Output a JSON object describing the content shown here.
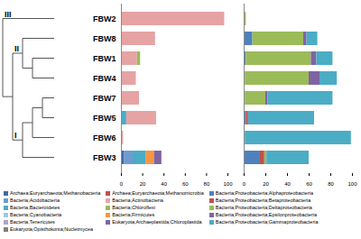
{
  "chart_data": [
    {
      "type": "bar",
      "orientation": "horizontal",
      "stacked": true,
      "grid": false,
      "categories": [
        "FBW2",
        "FBW8",
        "FBW1",
        "FBW4",
        "FBW7",
        "FBW5",
        "FBW6",
        "FBW3"
      ],
      "xlim": [
        0,
        100
      ],
      "xticks": [
        0,
        20,
        40,
        60,
        80,
        100
      ],
      "series": [
        {
          "name": "Archaea;Euryarchaeota;Methanobacteria",
          "color": "#3E6AA8",
          "values": [
            0,
            0,
            0,
            0,
            0,
            0,
            0,
            3
          ]
        },
        {
          "name": "Bacteria;Acidobacteria",
          "color": "#6F9BD1",
          "values": [
            0,
            0,
            0,
            0,
            0,
            0,
            0,
            8
          ]
        },
        {
          "name": "Bacteria;Bacteroidetes",
          "color": "#4BACC6",
          "values": [
            0,
            0,
            0,
            0,
            0,
            5,
            0,
            12
          ]
        },
        {
          "name": "Bacteria;Cyanobacteria",
          "color": "#93CDDD",
          "values": [
            0,
            0,
            0,
            0,
            0,
            0,
            0,
            0
          ]
        },
        {
          "name": "Bacteria;Tenericutes",
          "color": "#B3A2C7",
          "values": [
            0,
            0,
            0,
            0,
            0,
            0,
            0,
            0
          ]
        },
        {
          "name": "Eukaryota;Opisthokonta;Nucletmycea",
          "color": "#7F7F7F",
          "values": [
            0,
            0,
            0,
            0,
            0,
            0,
            0,
            0
          ]
        },
        {
          "name": "Archaea;Euryarchaeota;Methanomicrobia",
          "color": "#C0504D",
          "values": [
            0,
            0,
            0,
            0,
            0,
            0,
            0,
            0
          ]
        },
        {
          "name": "Bacteria;Actinobacteria",
          "color": "#E6A3A3",
          "values": [
            97,
            32,
            15,
            14,
            17,
            28,
            2,
            0
          ]
        },
        {
          "name": "Bacteria;Chloroflexi",
          "color": "#9BBB59",
          "values": [
            0,
            0,
            3,
            0,
            0,
            0,
            0,
            0
          ]
        },
        {
          "name": "Bacteria;Firmicutes",
          "color": "#F79646",
          "values": [
            0,
            0,
            0,
            0,
            0,
            0,
            0,
            8
          ]
        },
        {
          "name": "Eukaryota;Archaeplastida;Chloroplastida",
          "color": "#8064A2",
          "values": [
            0,
            0,
            0,
            0,
            0,
            0,
            0,
            7
          ]
        }
      ]
    },
    {
      "type": "bar",
      "orientation": "horizontal",
      "stacked": true,
      "grid": false,
      "tick_labels": "x",
      "categories": [
        "FBW2",
        "FBW8",
        "FBW1",
        "FBW4",
        "FBW7",
        "FBW5",
        "FBW6",
        "FBW3"
      ],
      "xlim": [
        0,
        100
      ],
      "xticks": [
        0,
        20,
        40,
        60,
        80,
        100
      ],
      "series": [
        {
          "name": "Bacteria;Proteobacteria;Alphaproteobacteria",
          "color": "#4F81BD",
          "values": [
            0,
            8,
            2,
            1,
            1,
            2,
            1,
            15
          ]
        },
        {
          "name": "Bacteria;Proteobacteria;Betaproteobacteria",
          "color": "#C0504D",
          "values": [
            0,
            0,
            0,
            0,
            0,
            2,
            0,
            4
          ]
        },
        {
          "name": "Bacteria;Proteobacteria;Deltaproteobacteria",
          "color": "#9BBB59",
          "values": [
            2,
            47,
            60,
            59,
            19,
            0,
            0,
            2
          ]
        },
        {
          "name": "Bacteria;Proteobacteria;Epsilonproteobacteria",
          "color": "#8064A2",
          "values": [
            0,
            3,
            5,
            10,
            2,
            0,
            0,
            0
          ]
        },
        {
          "name": "Bacteria;Proteobacteria;Gammaproteobacteria",
          "color": "#4BACC6",
          "values": [
            0,
            10,
            15,
            16,
            60,
            61,
            98,
            39
          ]
        }
      ]
    }
  ],
  "dendrogram": {
    "tree": {
      "children": [
        {
          "label": "III",
          "children": [
            "FBW2"
          ]
        },
        {
          "children": [
            {
              "label": "II",
              "children": [
                "FBW8",
                {
                  "children": [
                    "FBW1",
                    "FBW4"
                  ]
                }
              ]
            },
            {
              "label": "I",
              "children": [
                {
                  "children": [
                    {
                      "children": [
                        "FBW7",
                        "FBW5"
                      ]
                    },
                    "FBW6"
                  ]
                },
                "FBW3"
              ]
            }
          ]
        }
      ]
    }
  }
}
